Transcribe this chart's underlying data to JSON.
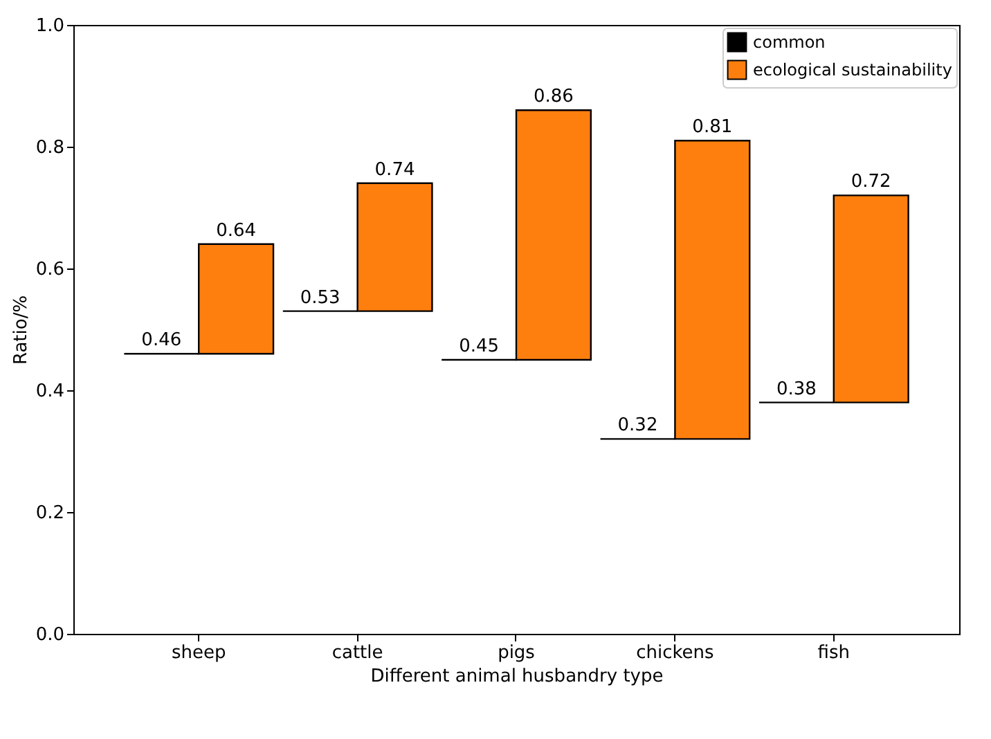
{
  "chart_data": {
    "type": "bar",
    "xlabel": "Different animal husbandry type",
    "ylabel": "Ratio/%",
    "categories": [
      "sheep",
      "cattle",
      "pigs",
      "chickens",
      "fish"
    ],
    "series": [
      {
        "name": "common",
        "color": "#000000",
        "base": [
          0.46,
          0.53,
          0.45,
          0.32,
          0.38
        ],
        "values": [
          0,
          0,
          0,
          0,
          0
        ],
        "value_labels": [
          "0.46",
          "0.53",
          "0.45",
          "0.32",
          "0.38"
        ]
      },
      {
        "name": "ecological sustainability",
        "color": "#ff7f0e",
        "base": [
          0.46,
          0.53,
          0.45,
          0.32,
          0.38
        ],
        "values": [
          0.18,
          0.21,
          0.41,
          0.49,
          0.34
        ],
        "value_labels": [
          "0.64",
          "0.74",
          "0.86",
          "0.81",
          "0.72"
        ]
      }
    ],
    "ylim": [
      0,
      1
    ],
    "yticks": [
      {
        "value": 0,
        "label": "0.0"
      },
      {
        "value": 0.2,
        "label": "0.2"
      },
      {
        "value": 0.4,
        "label": "0.4"
      },
      {
        "value": 0.6,
        "label": "0.6"
      },
      {
        "value": 0.8,
        "label": "0.8"
      },
      {
        "value": 1,
        "label": "1.0"
      }
    ],
    "legend": "top right",
    "grid": false
  }
}
